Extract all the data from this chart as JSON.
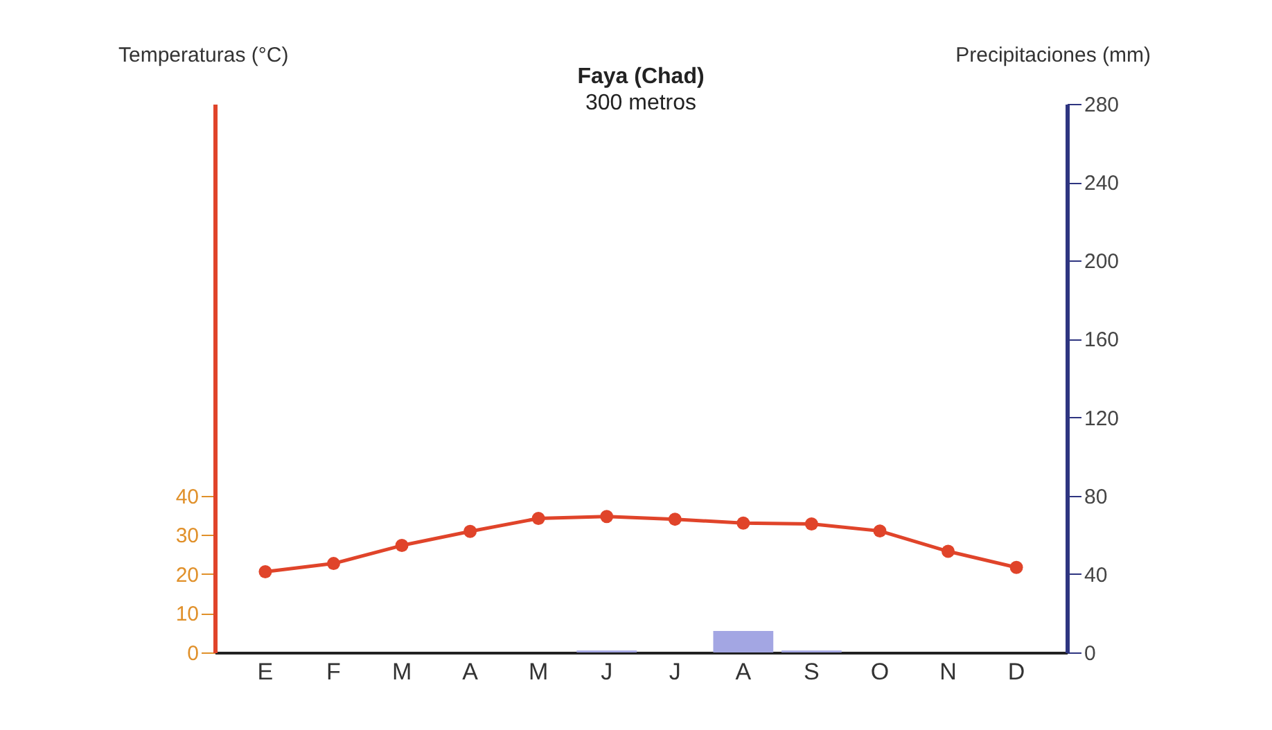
{
  "chart_data": {
    "type": "line",
    "title": "Faya (Chad)",
    "subtitle": "300 metros",
    "ylabel": "Temperaturas (°C)",
    "y2label": "Precipitaciones (mm)",
    "categories": [
      "E",
      "F",
      "M",
      "A",
      "M",
      "J",
      "J",
      "A",
      "S",
      "O",
      "N",
      "D"
    ],
    "series": [
      {
        "type": "bar",
        "axis": "y2",
        "color": "#a3a6e3",
        "values": [
          0,
          0,
          0,
          0,
          0,
          1,
          0,
          11,
          1,
          0,
          0,
          0
        ]
      },
      {
        "color": "#e0442a",
        "values": [
          20.6,
          22.7,
          27.3,
          30.9,
          34.2,
          34.7,
          34.0,
          33.0,
          32.8,
          31.0,
          25.8,
          21.7
        ]
      }
    ],
    "ylim": [
      0,
      140
    ],
    "yticks": [
      0,
      10,
      20,
      30,
      40
    ],
    "y2lim": [
      0,
      280
    ],
    "y2ticks": [
      0,
      40,
      80,
      120,
      160,
      200,
      240,
      280
    ],
    "marker": "circle",
    "line_style": "solid",
    "grid": false
  }
}
